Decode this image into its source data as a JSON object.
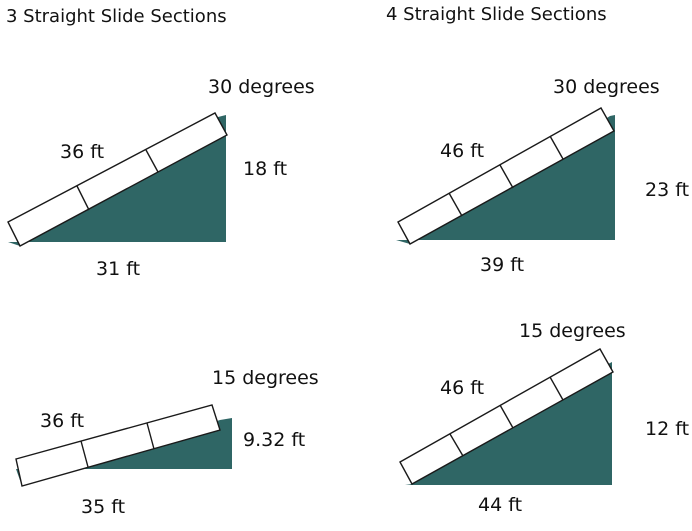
{
  "sections": {
    "three": "3 Straight Slide Sections",
    "four": "4 Straight Slide Sections"
  },
  "colors": {
    "ground": "#2f6665",
    "slide": "#ffffff",
    "outline": "#1a1a1a"
  },
  "diagrams": [
    {
      "id": "tl",
      "sections_count": 3,
      "angle": "30 degrees",
      "slide_length": "36 ft",
      "height": "18 ft",
      "base": "31 ft"
    },
    {
      "id": "tr",
      "sections_count": 4,
      "angle": "30 degrees",
      "slide_length": "46 ft",
      "height": "23 ft",
      "base": "39 ft"
    },
    {
      "id": "bl",
      "sections_count": 3,
      "angle": "15 degrees",
      "slide_length": "36 ft",
      "height": "9.32 ft",
      "base": "35 ft"
    },
    {
      "id": "br",
      "sections_count": 4,
      "angle": "15 degrees",
      "slide_length": "46 ft",
      "height": "12 ft",
      "base": "44 ft"
    }
  ]
}
